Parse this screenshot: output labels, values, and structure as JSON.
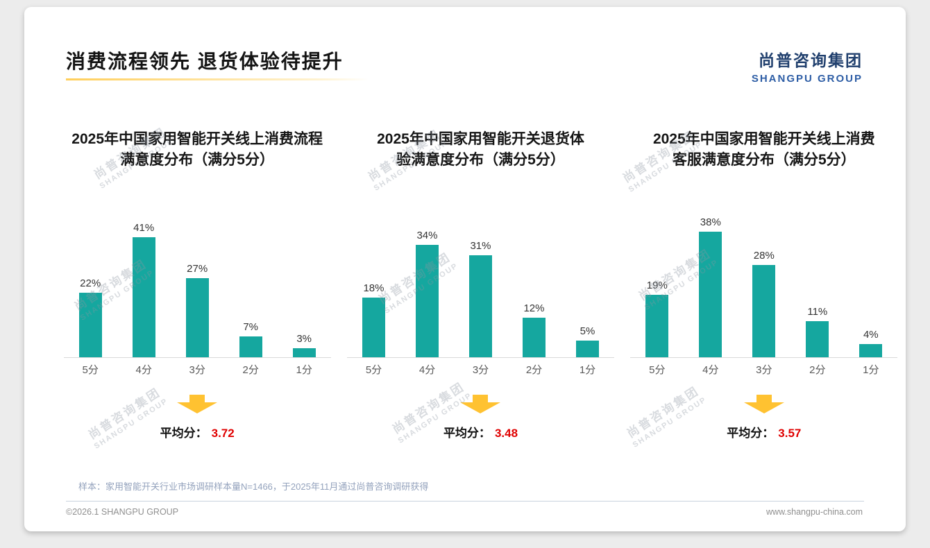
{
  "page": {
    "title": "消费流程领先 退货体验待提升",
    "logo": {
      "cn": "尚普咨询集团",
      "en": "SHANGPU GROUP"
    },
    "watermark": {
      "cn": "尚普咨询集团",
      "en": "SHANGPU GROUP"
    },
    "footnote": "样本：家用智能开关行业市场调研样本量N=1466，于2025年11月通过尚普咨询调研获得",
    "copyright": "©2026.1 SHANGPU GROUP",
    "website": "www.shangpu-china.com"
  },
  "colors": {
    "bar": "#15A79F",
    "arrow": "#FFC231",
    "average_value": "#E00000"
  },
  "chart_data": [
    {
      "type": "bar",
      "title": "2025年中国家用智能开关线上消费流程满意度分布（满分5分）",
      "title_lines": [
        "2025年中国家用智能开关线上消费流程",
        "满意度分布（满分5分）"
      ],
      "categories": [
        "5分",
        "4分",
        "3分",
        "2分",
        "1分"
      ],
      "values": [
        22,
        41,
        27,
        7,
        3
      ],
      "unit": "%",
      "ylim": [
        0,
        45
      ],
      "grid": false,
      "average": {
        "label": "平均分：",
        "value": "3.72"
      }
    },
    {
      "type": "bar",
      "title": "2025年中国家用智能开关退货体验满意度分布（满分5分）",
      "title_lines": [
        "2025年中国家用智能开关退货体",
        "验满意度分布（满分5分）"
      ],
      "categories": [
        "5分",
        "4分",
        "3分",
        "2分",
        "1分"
      ],
      "values": [
        18,
        34,
        31,
        12,
        5
      ],
      "unit": "%",
      "ylim": [
        0,
        40
      ],
      "grid": false,
      "average": {
        "label": "平均分：",
        "value": "3.48"
      }
    },
    {
      "type": "bar",
      "title": "2025年中国家用智能开关线上消费客服满意度分布（满分5分）",
      "title_lines": [
        "2025年中国家用智能开关线上消费",
        "客服满意度分布（满分5分）"
      ],
      "categories": [
        "5分",
        "4分",
        "3分",
        "2分",
        "1分"
      ],
      "values": [
        19,
        38,
        28,
        11,
        4
      ],
      "unit": "%",
      "ylim": [
        0,
        40
      ],
      "grid": false,
      "average": {
        "label": "平均分：",
        "value": "3.57"
      }
    }
  ]
}
